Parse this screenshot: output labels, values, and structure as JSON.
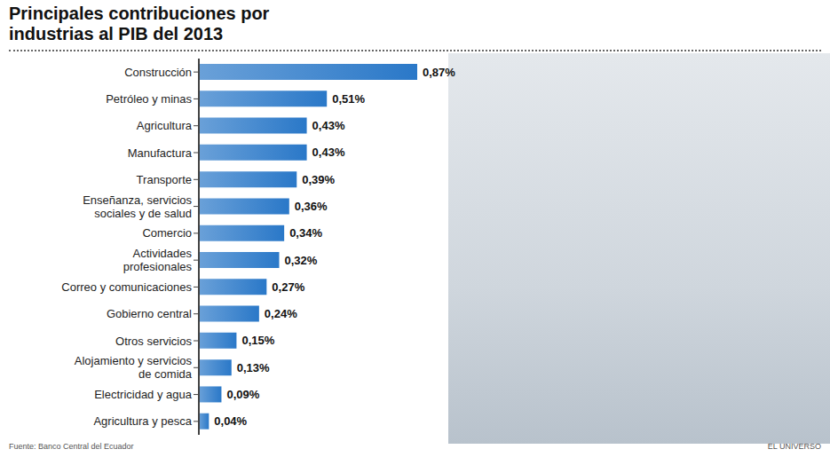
{
  "chart_data": {
    "type": "bar",
    "title": "Principales contribuciones por industrias al PIB del 2013",
    "orientation": "horizontal",
    "categories": [
      "Construcción",
      "Petróleo y minas",
      "Agricultura",
      "Manufactura",
      "Transporte",
      "Enseñanza, servicios sociales y de salud",
      "Comercio",
      "Actividades profesionales",
      "Correo y comunicaciones",
      "Gobierno central",
      "Otros servicios",
      "Alojamiento y servicios de comida",
      "Electricidad y agua",
      "Agricultura y pesca"
    ],
    "values": [
      0.87,
      0.51,
      0.43,
      0.43,
      0.39,
      0.36,
      0.34,
      0.32,
      0.27,
      0.24,
      0.15,
      0.13,
      0.09,
      0.04
    ],
    "value_labels": [
      "0,87%",
      "0,51%",
      "0,43%",
      "0,43%",
      "0,39%",
      "0,36%",
      "0,34%",
      "0,32%",
      "0,27%",
      "0,24%",
      "0,15%",
      "0,13%",
      "0,09%",
      "0,04%"
    ],
    "color": "#2a78c8",
    "data_labels": true,
    "tick_labels": "y",
    "grid": false,
    "annotations": [
      "Fuente: Banco Central del Ecuador",
      "EL UNIVERSO"
    ]
  }
}
